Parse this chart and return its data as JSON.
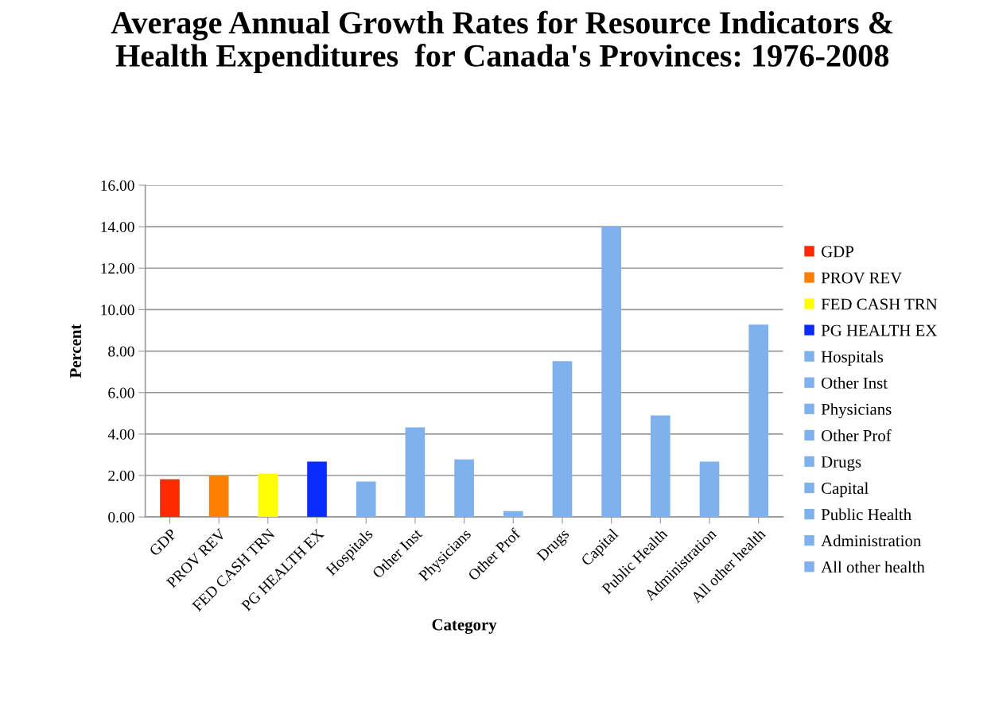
{
  "chart_data": {
    "type": "bar",
    "title": "Average Annual Growth Rates for Resource Indicators & Health Expenditures  for Canada's Provinces: 1976-2008",
    "xlabel": "Category",
    "ylabel": "Percent",
    "categories": [
      "GDP",
      "PROV REV",
      "FED CASH TRN",
      "PG HEALTH EX",
      "Hospitals",
      "Other Inst",
      "Physicians",
      "Other Prof",
      "Drugs",
      "Capital",
      "Public Health",
      "Administration",
      "All other health"
    ],
    "series": [
      {
        "name": "GDP",
        "color": "#ff2a00",
        "values": [
          1.82,
          null,
          null,
          null,
          null,
          null,
          null,
          null,
          null,
          null,
          null,
          null,
          null
        ]
      },
      {
        "name": "PROV REV",
        "color": "#ff7f00",
        "values": [
          null,
          1.99,
          null,
          null,
          null,
          null,
          null,
          null,
          null,
          null,
          null,
          null,
          null
        ]
      },
      {
        "name": "FED CASH TRN",
        "color": "#ffff00",
        "values": [
          null,
          null,
          2.1,
          null,
          null,
          null,
          null,
          null,
          null,
          null,
          null,
          null,
          null
        ]
      },
      {
        "name": "PG HEALTH EX",
        "color": "#0a2cff",
        "values": [
          null,
          null,
          null,
          2.67,
          null,
          null,
          null,
          null,
          null,
          null,
          null,
          null,
          null
        ]
      },
      {
        "name": "Hospitals",
        "color": "#7fb2ec",
        "values": [
          null,
          null,
          null,
          null,
          1.71,
          null,
          null,
          null,
          null,
          null,
          null,
          null,
          null
        ]
      },
      {
        "name": "Other Inst",
        "color": "#7fb2ec",
        "values": [
          null,
          null,
          null,
          null,
          null,
          4.32,
          null,
          null,
          null,
          null,
          null,
          null,
          null
        ]
      },
      {
        "name": "Physicians",
        "color": "#7fb2ec",
        "values": [
          null,
          null,
          null,
          null,
          null,
          null,
          2.78,
          null,
          null,
          null,
          null,
          null,
          null
        ]
      },
      {
        "name": "Other Prof",
        "color": "#7fb2ec",
        "values": [
          null,
          null,
          null,
          null,
          null,
          null,
          null,
          0.28,
          null,
          null,
          null,
          null,
          null
        ]
      },
      {
        "name": "Drugs",
        "color": "#7fb2ec",
        "values": [
          null,
          null,
          null,
          null,
          null,
          null,
          null,
          null,
          7.51,
          null,
          null,
          null,
          null
        ]
      },
      {
        "name": "Capital",
        "color": "#7fb2ec",
        "values": [
          null,
          null,
          null,
          null,
          null,
          null,
          null,
          null,
          null,
          14.0,
          null,
          null,
          null
        ]
      },
      {
        "name": "Public Health",
        "color": "#7fb2ec",
        "values": [
          null,
          null,
          null,
          null,
          null,
          null,
          null,
          null,
          null,
          null,
          4.9,
          null,
          null
        ]
      },
      {
        "name": "Administration",
        "color": "#7fb2ec",
        "values": [
          null,
          null,
          null,
          null,
          null,
          null,
          null,
          null,
          null,
          null,
          null,
          2.67,
          null
        ]
      },
      {
        "name": "All other health",
        "color": "#7fb2ec",
        "values": [
          null,
          null,
          null,
          null,
          null,
          null,
          null,
          null,
          null,
          null,
          null,
          null,
          9.28
        ]
      }
    ],
    "ylim": [
      0,
      16
    ],
    "yticks": [
      {
        "value": 0,
        "label": "0.00"
      },
      {
        "value": 2,
        "label": "2.00"
      },
      {
        "value": 4,
        "label": "4.00"
      },
      {
        "value": 6,
        "label": "6.00"
      },
      {
        "value": 8,
        "label": "8.00"
      },
      {
        "value": 10,
        "label": "10.00"
      },
      {
        "value": 12,
        "label": "12.00"
      },
      {
        "value": 14,
        "label": "14.00"
      },
      {
        "value": 16,
        "label": "16.00"
      }
    ],
    "grid": "y",
    "legend": "right"
  }
}
